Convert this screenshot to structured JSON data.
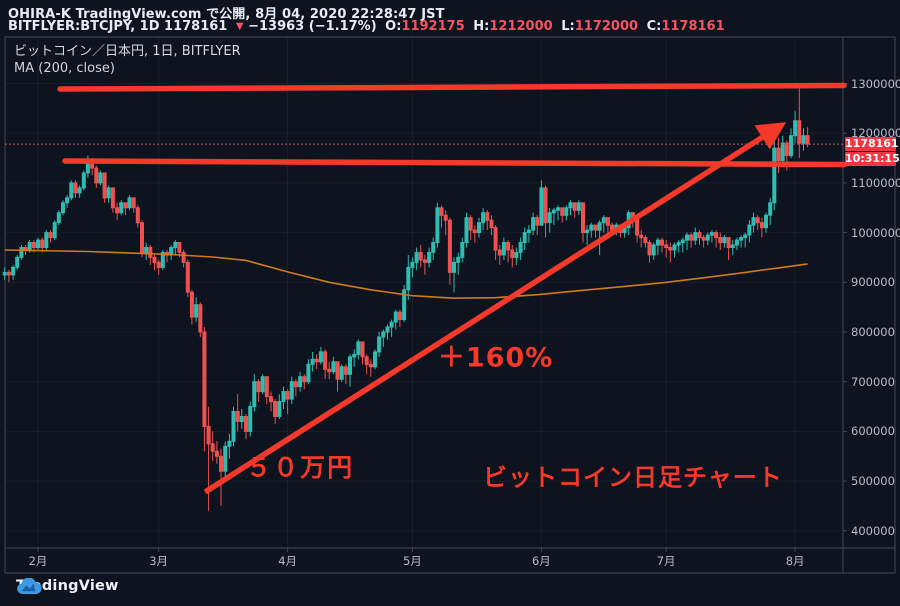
{
  "header": {
    "publish_line": "OHIRA-K TradingView.com で公開, 8月 04, 2020 22:28:47 JST",
    "symbol": "BITFLYER:BTCJPY, 1D 1178161",
    "change_arrow": "▼",
    "change": "−13963 (−1.17%)",
    "ohlc": [
      {
        "label": "O:",
        "value": "1192175"
      },
      {
        "label": "H:",
        "value": "1212000"
      },
      {
        "label": "L:",
        "value": "1172000"
      },
      {
        "label": "C:",
        "value": "1178161"
      }
    ]
  },
  "legend": {
    "title": "ビットコイン／日本円, 1日, BITFLYER",
    "indicator": "MA (200, close)"
  },
  "price_line": {
    "price": 1178161,
    "label": "1178161",
    "countdown": "10:31:15"
  },
  "price_axis": {
    "labels": [
      "1300000",
      "1200000",
      "1100000",
      "1000000",
      "900000",
      "800000",
      "700000",
      "600000",
      "500000",
      "400000"
    ]
  },
  "time_axis": {
    "labels": [
      {
        "text": "2月",
        "day": 8
      },
      {
        "text": "3月",
        "day": 37
      },
      {
        "text": "4月",
        "day": 68
      },
      {
        "text": "5月",
        "day": 98
      },
      {
        "text": "6月",
        "day": 129
      },
      {
        "text": "7月",
        "day": 159
      },
      {
        "text": "8月",
        "day": 190
      }
    ]
  },
  "watermark": {
    "brand": "TradingView"
  },
  "colors": {
    "background": "#0e1320",
    "candle_up": "#2fbdb0",
    "candle_down": "#f05150",
    "ma_line": "#d27b16",
    "drawing_red": "#f4392b",
    "badge_red": "#f23645",
    "value_red": "#f7525f",
    "axis_text": "#b6bcc9",
    "frame": "#434a5c",
    "grid": "rgba(170,180,210,0.07)",
    "price_line_dotted": "#cf5560"
  },
  "chart_data": {
    "type": "candlestick",
    "title": "ビットコイン／日本円, 1日, BITFLYER",
    "exchange": "BITFLYER",
    "interval": "1日",
    "unit": "thousand JPY",
    "start_date": "2020-01-24",
    "end_date": "2020-08-04",
    "ylim_thousand_jpy": [
      366,
      1394
    ],
    "grid": true,
    "open_equals_previous_close": true,
    "first_open": 915,
    "candles_hlc": [
      [
        930,
        905,
        920
      ],
      [
        925,
        900,
        915
      ],
      [
        935,
        905,
        930
      ],
      [
        955,
        925,
        950
      ],
      [
        975,
        945,
        970
      ],
      [
        975,
        955,
        965
      ],
      [
        985,
        960,
        980
      ],
      [
        985,
        960,
        970
      ],
      [
        990,
        965,
        985
      ],
      [
        990,
        960,
        970
      ],
      [
        1005,
        965,
        1000
      ],
      [
        1005,
        980,
        990
      ],
      [
        1025,
        985,
        1020
      ],
      [
        1045,
        1015,
        1040
      ],
      [
        1065,
        1035,
        1060
      ],
      [
        1075,
        1050,
        1070
      ],
      [
        1105,
        1065,
        1100
      ],
      [
        1105,
        1070,
        1080
      ],
      [
        1095,
        1070,
        1090
      ],
      [
        1125,
        1085,
        1120
      ],
      [
        1155,
        1110,
        1145
      ],
      [
        1150,
        1115,
        1130
      ],
      [
        1135,
        1090,
        1100
      ],
      [
        1125,
        1095,
        1120
      ],
      [
        1120,
        1060,
        1070
      ],
      [
        1095,
        1060,
        1090
      ],
      [
        1090,
        1040,
        1050
      ],
      [
        1060,
        1025,
        1040
      ],
      [
        1065,
        1035,
        1060
      ],
      [
        1060,
        1035,
        1050
      ],
      [
        1075,
        1045,
        1070
      ],
      [
        1070,
        1040,
        1050
      ],
      [
        1055,
        1010,
        1020
      ],
      [
        1025,
        950,
        960
      ],
      [
        980,
        945,
        970
      ],
      [
        975,
        935,
        950
      ],
      [
        955,
        925,
        940
      ],
      [
        945,
        915,
        930
      ],
      [
        965,
        925,
        960
      ],
      [
        965,
        940,
        955
      ],
      [
        975,
        945,
        970
      ],
      [
        985,
        955,
        980
      ],
      [
        980,
        950,
        960
      ],
      [
        965,
        930,
        940
      ],
      [
        945,
        870,
        880
      ],
      [
        885,
        815,
        830
      ],
      [
        870,
        820,
        855
      ],
      [
        860,
        790,
        800
      ],
      [
        810,
        560,
        610
      ],
      [
        650,
        440,
        575
      ],
      [
        600,
        540,
        560
      ],
      [
        580,
        535,
        550
      ],
      [
        565,
        450,
        520
      ],
      [
        580,
        510,
        570
      ],
      [
        595,
        545,
        580
      ],
      [
        650,
        570,
        640
      ],
      [
        675,
        600,
        620
      ],
      [
        645,
        605,
        630
      ],
      [
        635,
        585,
        600
      ],
      [
        660,
        590,
        650
      ],
      [
        715,
        640,
        700
      ],
      [
        705,
        660,
        680
      ],
      [
        715,
        675,
        710
      ],
      [
        705,
        655,
        670
      ],
      [
        680,
        640,
        660
      ],
      [
        665,
        615,
        630
      ],
      [
        675,
        625,
        660
      ],
      [
        690,
        645,
        680
      ],
      [
        685,
        635,
        665
      ],
      [
        710,
        655,
        700
      ],
      [
        705,
        670,
        690
      ],
      [
        720,
        680,
        710
      ],
      [
        715,
        685,
        700
      ],
      [
        745,
        695,
        735
      ],
      [
        760,
        720,
        745
      ],
      [
        755,
        725,
        740
      ],
      [
        770,
        735,
        760
      ],
      [
        765,
        705,
        725
      ],
      [
        740,
        705,
        720
      ],
      [
        750,
        715,
        740
      ],
      [
        740,
        680,
        705
      ],
      [
        735,
        700,
        730
      ],
      [
        735,
        695,
        715
      ],
      [
        755,
        690,
        750
      ],
      [
        765,
        730,
        755
      ],
      [
        785,
        745,
        780
      ],
      [
        780,
        735,
        750
      ],
      [
        755,
        715,
        735
      ],
      [
        745,
        710,
        730
      ],
      [
        765,
        725,
        760
      ],
      [
        800,
        750,
        790
      ],
      [
        805,
        770,
        800
      ],
      [
        815,
        785,
        810
      ],
      [
        825,
        790,
        820
      ],
      [
        845,
        805,
        840
      ],
      [
        845,
        810,
        825
      ],
      [
        895,
        820,
        885
      ],
      [
        955,
        865,
        930
      ],
      [
        950,
        910,
        940
      ],
      [
        970,
        925,
        960
      ],
      [
        975,
        930,
        945
      ],
      [
        955,
        915,
        940
      ],
      [
        970,
        930,
        960
      ],
      [
        990,
        945,
        980
      ],
      [
        1060,
        970,
        1050
      ],
      [
        1055,
        1010,
        1035
      ],
      [
        1045,
        995,
        1025
      ],
      [
        1030,
        895,
        920
      ],
      [
        950,
        880,
        940
      ],
      [
        960,
        915,
        950
      ],
      [
        990,
        940,
        980
      ],
      [
        1040,
        970,
        1030
      ],
      [
        1035,
        985,
        1005
      ],
      [
        1015,
        980,
        1000
      ],
      [
        1030,
        990,
        1020
      ],
      [
        1050,
        1005,
        1040
      ],
      [
        1045,
        1005,
        1025
      ],
      [
        1035,
        995,
        1010
      ],
      [
        1015,
        945,
        965
      ],
      [
        975,
        935,
        955
      ],
      [
        990,
        945,
        980
      ],
      [
        985,
        940,
        965
      ],
      [
        975,
        930,
        950
      ],
      [
        970,
        935,
        960
      ],
      [
        990,
        945,
        980
      ],
      [
        1010,
        965,
        1000
      ],
      [
        1015,
        980,
        1005
      ],
      [
        1040,
        995,
        1030
      ],
      [
        1035,
        995,
        1015
      ],
      [
        1105,
        1015,
        1090
      ],
      [
        1095,
        990,
        1020
      ],
      [
        1050,
        1000,
        1040
      ],
      [
        1050,
        1015,
        1045
      ],
      [
        1055,
        1025,
        1050
      ],
      [
        1050,
        1020,
        1035
      ],
      [
        1055,
        1025,
        1050
      ],
      [
        1065,
        1035,
        1060
      ],
      [
        1060,
        1030,
        1045
      ],
      [
        1065,
        1035,
        1060
      ],
      [
        1060,
        980,
        1000
      ],
      [
        1015,
        975,
        1005
      ],
      [
        1020,
        990,
        1015
      ],
      [
        1015,
        990,
        1005
      ],
      [
        1025,
        955,
        1020
      ],
      [
        1035,
        1000,
        1030
      ],
      [
        1030,
        1000,
        1015
      ],
      [
        1020,
        995,
        1005
      ],
      [
        1020,
        995,
        1015
      ],
      [
        1015,
        990,
        1000
      ],
      [
        1015,
        990,
        1010
      ],
      [
        1045,
        995,
        1040
      ],
      [
        1040,
        1010,
        1030
      ],
      [
        1035,
        980,
        995
      ],
      [
        1005,
        970,
        990
      ],
      [
        995,
        970,
        980
      ],
      [
        985,
        940,
        955
      ],
      [
        980,
        945,
        975
      ],
      [
        990,
        955,
        985
      ],
      [
        990,
        960,
        975
      ],
      [
        985,
        950,
        970
      ],
      [
        980,
        940,
        965
      ],
      [
        980,
        950,
        975
      ],
      [
        985,
        960,
        980
      ],
      [
        990,
        960,
        985
      ],
      [
        1000,
        965,
        995
      ],
      [
        1000,
        970,
        985
      ],
      [
        1010,
        975,
        1000
      ],
      [
        1005,
        975,
        990
      ],
      [
        995,
        970,
        985
      ],
      [
        1000,
        975,
        995
      ],
      [
        1005,
        980,
        1000
      ],
      [
        1005,
        970,
        990
      ],
      [
        1000,
        965,
        980
      ],
      [
        995,
        970,
        990
      ],
      [
        990,
        945,
        970
      ],
      [
        985,
        955,
        975
      ],
      [
        990,
        965,
        985
      ],
      [
        995,
        970,
        990
      ],
      [
        1000,
        970,
        995
      ],
      [
        1025,
        980,
        1015
      ],
      [
        1040,
        1000,
        1030
      ],
      [
        1035,
        1005,
        1020
      ],
      [
        1030,
        990,
        1010
      ],
      [
        1040,
        1000,
        1035
      ],
      [
        1070,
        1015,
        1060
      ],
      [
        1200,
        1045,
        1170
      ],
      [
        1190,
        1120,
        1145
      ],
      [
        1195,
        1135,
        1180
      ],
      [
        1185,
        1125,
        1155
      ],
      [
        1210,
        1150,
        1195
      ],
      [
        1245,
        1180,
        1225
      ],
      [
        1290,
        1150,
        1180
      ],
      [
        1210,
        1165,
        1195
      ],
      [
        1212,
        1172,
        1178
      ]
    ],
    "ma200_points": [
      [
        0,
        965
      ],
      [
        20,
        962
      ],
      [
        40,
        956
      ],
      [
        50,
        951
      ],
      [
        58,
        944
      ],
      [
        68,
        921
      ],
      [
        78,
        900
      ],
      [
        88,
        885
      ],
      [
        98,
        873
      ],
      [
        108,
        868
      ],
      [
        118,
        869
      ],
      [
        128,
        875
      ],
      [
        138,
        883
      ],
      [
        148,
        891
      ],
      [
        158,
        899
      ],
      [
        168,
        909
      ],
      [
        178,
        920
      ],
      [
        186,
        929
      ],
      [
        193,
        937
      ]
    ],
    "annotations": {
      "resistance_lines": [
        {
          "from_day": 13.3,
          "from_price": 1289,
          "to_day": 201.8,
          "to_price": 1296
        },
        {
          "from_day": 14.5,
          "from_price": 1144,
          "to_day": 201.8,
          "to_price": 1137
        }
      ],
      "trend_arrow": {
        "from_day": 48.2,
        "from_price": 478,
        "to_day": 186.5,
        "to_price": 1215
      },
      "texts": [
        {
          "text": "＋160%",
          "day": 118,
          "price": 753
        },
        {
          "text": "５０万円",
          "day": 71,
          "price": 530
        },
        {
          "text": "ビットコイン日足チャート",
          "day": 151,
          "price": 512
        }
      ]
    }
  }
}
